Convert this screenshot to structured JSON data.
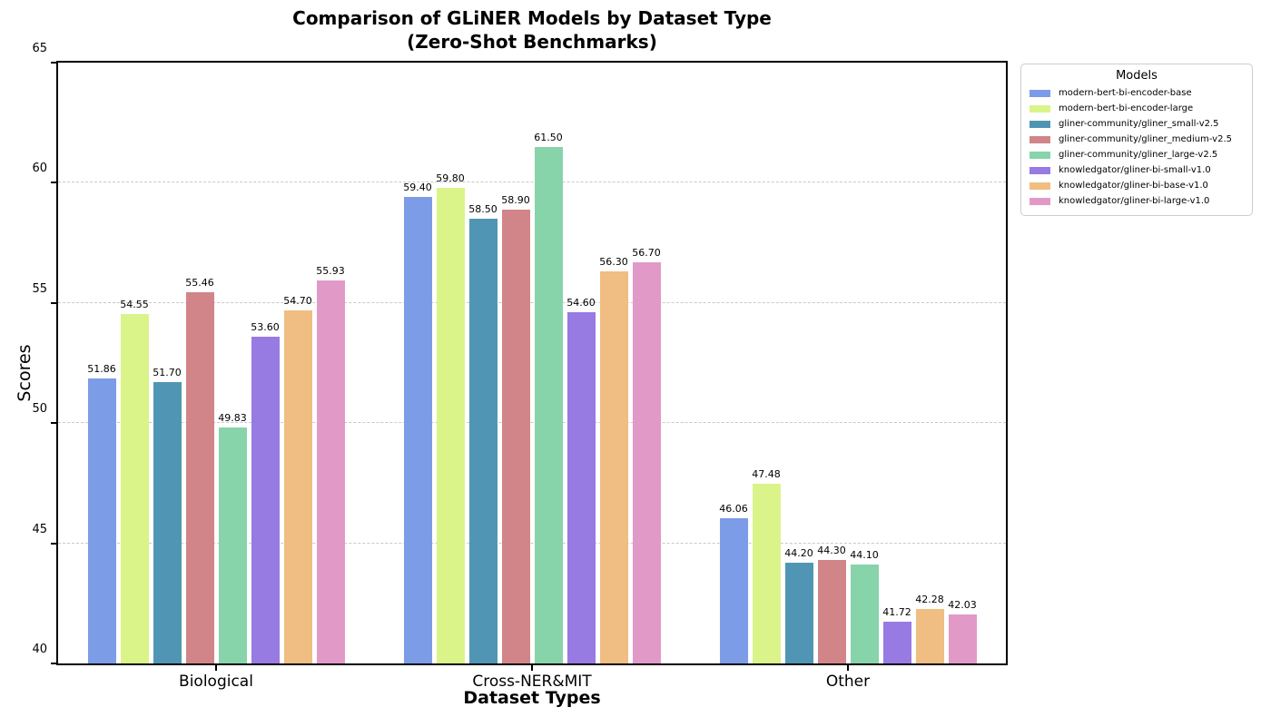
{
  "chart_data": {
    "type": "bar",
    "title": "Comparison of GLiNER Models by Dataset Type",
    "subtitle": "(Zero-Shot Benchmarks)",
    "xlabel": "Dataset Types",
    "ylabel": "Scores",
    "ylim": [
      40,
      65
    ],
    "yticks": [
      40,
      45,
      50,
      55,
      60,
      65
    ],
    "grid": "horizontal-dashed",
    "gridline_color": "#c9c9c9",
    "value_label_decimals": 2,
    "legend_title": "Models",
    "legend_position": "outside-upper-right",
    "categories": [
      "Biological",
      "Cross-NER&MIT",
      "Other"
    ],
    "series": [
      {
        "name": "modern-bert-bi-encoder-base",
        "color": "#7C9CE8",
        "values": [
          51.86,
          59.4,
          46.06
        ]
      },
      {
        "name": "modern-bert-bi-encoder-large",
        "color": "#DAF48A",
        "values": [
          54.55,
          59.8,
          47.48
        ]
      },
      {
        "name": "gliner-community/gliner_small-v2.5",
        "color": "#5096B4",
        "values": [
          51.7,
          58.5,
          44.2
        ]
      },
      {
        "name": "gliner-community/gliner_medium-v2.5",
        "color": "#D18589",
        "values": [
          55.46,
          58.9,
          44.3
        ]
      },
      {
        "name": "gliner-community/gliner_large-v2.5",
        "color": "#87D4AA",
        "values": [
          49.83,
          61.5,
          44.1
        ]
      },
      {
        "name": "knowledgator/gliner-bi-small-v1.0",
        "color": "#977AE2",
        "values": [
          53.6,
          54.6,
          41.72
        ]
      },
      {
        "name": "knowledgator/gliner-bi-base-v1.0",
        "color": "#F0BD82",
        "values": [
          54.7,
          56.3,
          42.28
        ]
      },
      {
        "name": "knowledgator/gliner-bi-large-v1.0",
        "color": "#E19AC8",
        "values": [
          55.93,
          56.7,
          42.03
        ]
      }
    ]
  }
}
